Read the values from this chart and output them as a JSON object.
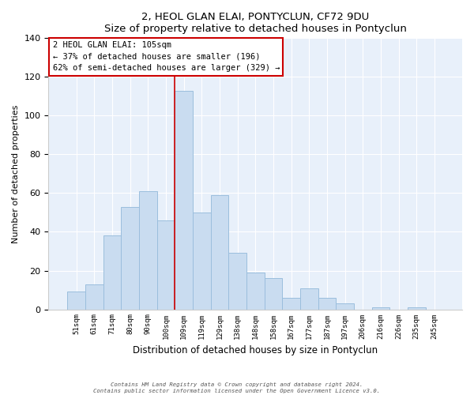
{
  "title": "2, HEOL GLAN ELAI, PONTYCLUN, CF72 9DU",
  "subtitle": "Size of property relative to detached houses in Pontyclun",
  "xlabel": "Distribution of detached houses by size in Pontyclun",
  "ylabel": "Number of detached properties",
  "categories": [
    "51sqm",
    "61sqm",
    "71sqm",
    "80sqm",
    "90sqm",
    "100sqm",
    "109sqm",
    "119sqm",
    "129sqm",
    "138sqm",
    "148sqm",
    "158sqm",
    "167sqm",
    "177sqm",
    "187sqm",
    "197sqm",
    "206sqm",
    "216sqm",
    "226sqm",
    "235sqm",
    "245sqm"
  ],
  "values": [
    9,
    13,
    38,
    53,
    61,
    46,
    113,
    50,
    59,
    29,
    19,
    16,
    6,
    11,
    6,
    3,
    0,
    1,
    0,
    1,
    0
  ],
  "bar_color": "#c9dcf0",
  "bar_edge_color": "#9bbedd",
  "vline_x": 5.5,
  "vline_color": "#cc0000",
  "ylim": [
    0,
    140
  ],
  "yticks": [
    0,
    20,
    40,
    60,
    80,
    100,
    120,
    140
  ],
  "annotation_title": "2 HEOL GLAN ELAI: 105sqm",
  "annotation_line1": "← 37% of detached houses are smaller (196)",
  "annotation_line2": "62% of semi-detached houses are larger (329) →",
  "annotation_box_color": "#ffffff",
  "annotation_box_edge": "#cc0000",
  "footer1": "Contains HM Land Registry data © Crown copyright and database right 2024.",
  "footer2": "Contains public sector information licensed under the Open Government Licence v3.0.",
  "bg_color": "#e8f0fa"
}
